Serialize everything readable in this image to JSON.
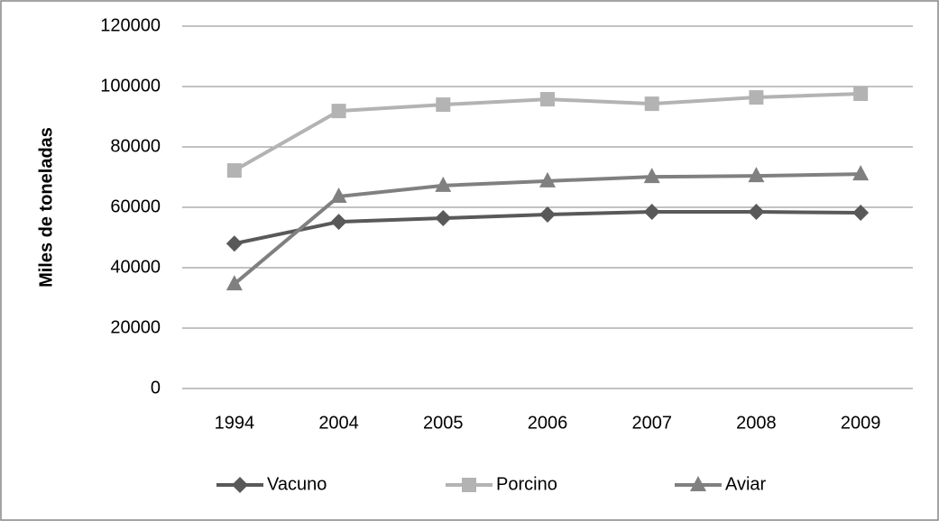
{
  "chart_data": {
    "type": "line",
    "y_label": "Miles de toneladas",
    "categories": [
      "1994",
      "2004",
      "2005",
      "2006",
      "2007",
      "2008",
      "2009"
    ],
    "series": [
      {
        "name": "Vacuno",
        "color": "#595959",
        "marker": "diamond",
        "values": [
          48000,
          55200,
          56400,
          57600,
          58500,
          58500,
          58200
        ]
      },
      {
        "name": "Porcino",
        "color": "#b3b3b3",
        "marker": "square",
        "values": [
          72200,
          91900,
          94000,
          95800,
          94300,
          96400,
          97600
        ]
      },
      {
        "name": "Aviar",
        "color": "#808080",
        "marker": "triangle",
        "values": [
          34600,
          63600,
          67200,
          68700,
          70100,
          70400,
          71000
        ]
      }
    ],
    "ylim": [
      0,
      120000
    ],
    "yticks": [
      0,
      20000,
      40000,
      60000,
      80000,
      100000,
      120000
    ],
    "grid": true,
    "legend": "bottom"
  }
}
